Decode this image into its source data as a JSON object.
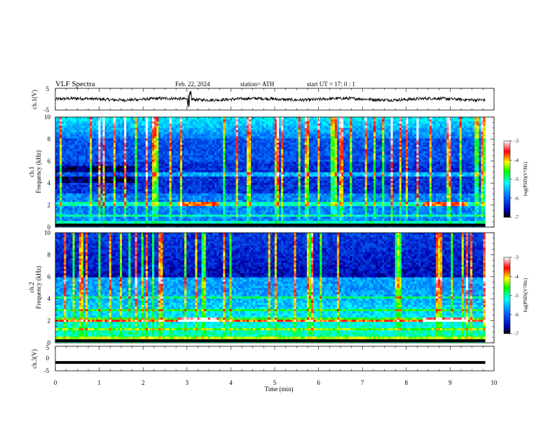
{
  "header": {
    "title": "VLF  Spectra",
    "date": "Feb. 22, 2024",
    "station": "station= ATH",
    "start": "start  UT  =   17: 0  : 1"
  },
  "chart_data": [
    {
      "type": "line",
      "panel": "ch1-waveform",
      "ylabel": "ch.1(V)",
      "ylim": [
        -5,
        5
      ],
      "yticks": [
        "5",
        "-5"
      ],
      "xlim": [
        0,
        10
      ],
      "baseline": 0,
      "trace_color": "#000000"
    },
    {
      "type": "heatmap",
      "panel": "ch1-spectrogram",
      "ylabel": "ch.1\nFrequency  (kHz)",
      "xlim": [
        0,
        10
      ],
      "ylim": [
        0,
        10
      ],
      "yticks": [
        "0",
        "2",
        "4",
        "6",
        "8",
        "10"
      ],
      "data_end_min": 9.8,
      "features": {
        "bands_khz": [
          0.4,
          1.1,
          2.0,
          2.25,
          4.8
        ],
        "highlights": [
          {
            "x": [
              2.8,
              3.7
            ],
            "y_khz": 2.2
          },
          {
            "x": [
              8.4,
              9.4
            ],
            "y_khz": 2.2
          }
        ]
      },
      "colorbar": {
        "label": "log(PSD)(V²/Hz)",
        "ticks": [
          "-3",
          "-4",
          "-5",
          "-6",
          "-7"
        ],
        "range": [
          -7,
          -3
        ],
        "colors": [
          "#000000",
          "#0000b4",
          "#0070ff",
          "#00ffff",
          "#00ff00",
          "#ffff00",
          "#ff0000",
          "#ffffff"
        ]
      }
    },
    {
      "type": "heatmap",
      "panel": "ch2-spectrogram",
      "ylabel": "ch.2\nFrequency  (kHz)",
      "xlim": [
        0,
        10
      ],
      "ylim": [
        0,
        10
      ],
      "yticks": [
        "0",
        "2",
        "4",
        "6",
        "8",
        "10"
      ],
      "data_end_min": 9.8,
      "features": {
        "bands_khz": [
          0.4,
          1.2,
          2.0,
          2.1,
          3.0,
          4.2
        ],
        "highlights": [
          {
            "x": [
              2.8,
              3.7
            ],
            "y_khz": 2.05
          },
          {
            "x": [
              8.4,
              9.4
            ],
            "y_khz": 2.05
          }
        ]
      },
      "colorbar": {
        "label": "log(PSD)(V²/Hz)",
        "ticks": [
          "-3",
          "-4",
          "-5",
          "-6",
          "-7"
        ],
        "range": [
          -7,
          -3
        ],
        "colors": [
          "#000000",
          "#0000b4",
          "#0070ff",
          "#00ffff",
          "#00ff00",
          "#ffff00",
          "#ff0000",
          "#ffffff"
        ]
      }
    },
    {
      "type": "line",
      "panel": "ch3-waveform",
      "ylabel": "ch.3(V)",
      "ylim": [
        -5,
        5
      ],
      "yticks": [
        "5",
        "0",
        "-5"
      ],
      "xlim": [
        0,
        10
      ],
      "level": -1.6,
      "trace_color": "#000000"
    }
  ],
  "xaxis": {
    "label": "Time  (min)",
    "ticks": [
      "0",
      "1",
      "2",
      "3",
      "4",
      "5",
      "6",
      "7",
      "8",
      "9",
      "10"
    ],
    "range": [
      0,
      10
    ]
  }
}
